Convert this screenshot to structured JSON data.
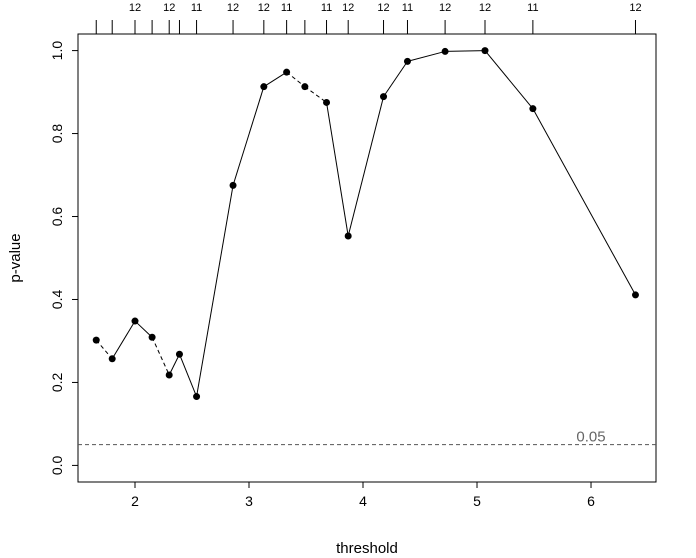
{
  "chart_data": {
    "type": "line",
    "xlabel": "threshold",
    "ylabel": "p-value",
    "xlim": [
      1.5,
      6.57
    ],
    "ylim": [
      -0.04,
      1.04
    ],
    "x_ticks": [
      2,
      3,
      4,
      5,
      6
    ],
    "y_ticks": [
      0.0,
      0.2,
      0.4,
      0.6,
      0.8,
      1.0
    ],
    "y_tick_labels": [
      "0.0",
      "0.2",
      "0.4",
      "0.6",
      "0.8",
      "1.0"
    ],
    "grid": false,
    "series": [
      {
        "x": [
          1.66,
          1.8,
          2.0,
          2.15,
          2.3,
          2.39,
          2.54,
          2.86,
          3.13,
          3.33,
          3.49,
          3.68,
          3.87,
          4.18,
          4.39,
          4.72,
          5.07,
          5.49,
          6.39
        ],
        "y": [
          0.302,
          0.257,
          0.348,
          0.309,
          0.218,
          0.268,
          0.166,
          0.675,
          0.913,
          0.948,
          0.913,
          0.875,
          0.553,
          0.889,
          0.974,
          0.998,
          1.0,
          0.86,
          0.411
        ],
        "dashed_segments": [
          0,
          3,
          9,
          10
        ]
      }
    ],
    "top_axis": {
      "positions": [
        1.66,
        1.8,
        2.0,
        2.15,
        2.3,
        2.39,
        2.54,
        2.86,
        3.13,
        3.33,
        3.49,
        3.68,
        3.87,
        4.18,
        4.39,
        4.72,
        5.07,
        5.49,
        6.39
      ],
      "labels": [
        "12",
        "12",
        "12",
        "11",
        "12",
        "12",
        "11",
        "12",
        "12",
        "11",
        "11",
        "11",
        "12",
        "12",
        "11",
        "12",
        "12",
        "11",
        "12"
      ],
      "shown": [
        false,
        false,
        true,
        false,
        true,
        false,
        true,
        true,
        true,
        true,
        false,
        true,
        true,
        true,
        true,
        true,
        true,
        true,
        true
      ]
    },
    "reference_line": {
      "y": 0.05,
      "label": "0.05",
      "label_x": 6.0,
      "color": "#555555",
      "style": "dashed"
    }
  }
}
